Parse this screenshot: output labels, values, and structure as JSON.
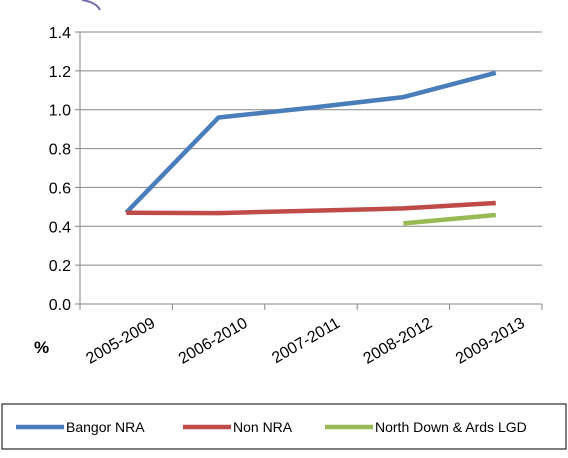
{
  "chart_data": {
    "type": "line",
    "title": "",
    "xlabel": "",
    "ylabel": "%",
    "categories": [
      "2005-2009",
      "2006-2010",
      "2007-2011",
      "2008-2012",
      "2009-2013"
    ],
    "ylim": [
      0,
      1.4
    ],
    "yticks": [
      "0.0",
      "0.2",
      "0.4",
      "0.6",
      "0.8",
      "1.0",
      "1.2",
      "1.4"
    ],
    "grid": true,
    "legend_position": "bottom",
    "series": [
      {
        "name": "Bangor NRA",
        "color": "#4a7ebb",
        "values": [
          0.47,
          0.96,
          1.01,
          1.065,
          1.19
        ]
      },
      {
        "name": "Non NRA",
        "color": "#be4b48",
        "values": [
          0.47,
          0.468,
          0.48,
          0.492,
          0.52
        ]
      },
      {
        "name": "North Down & Ards LGD",
        "color": "#98b954",
        "values": [
          null,
          null,
          null,
          0.415,
          0.458
        ]
      }
    ]
  }
}
